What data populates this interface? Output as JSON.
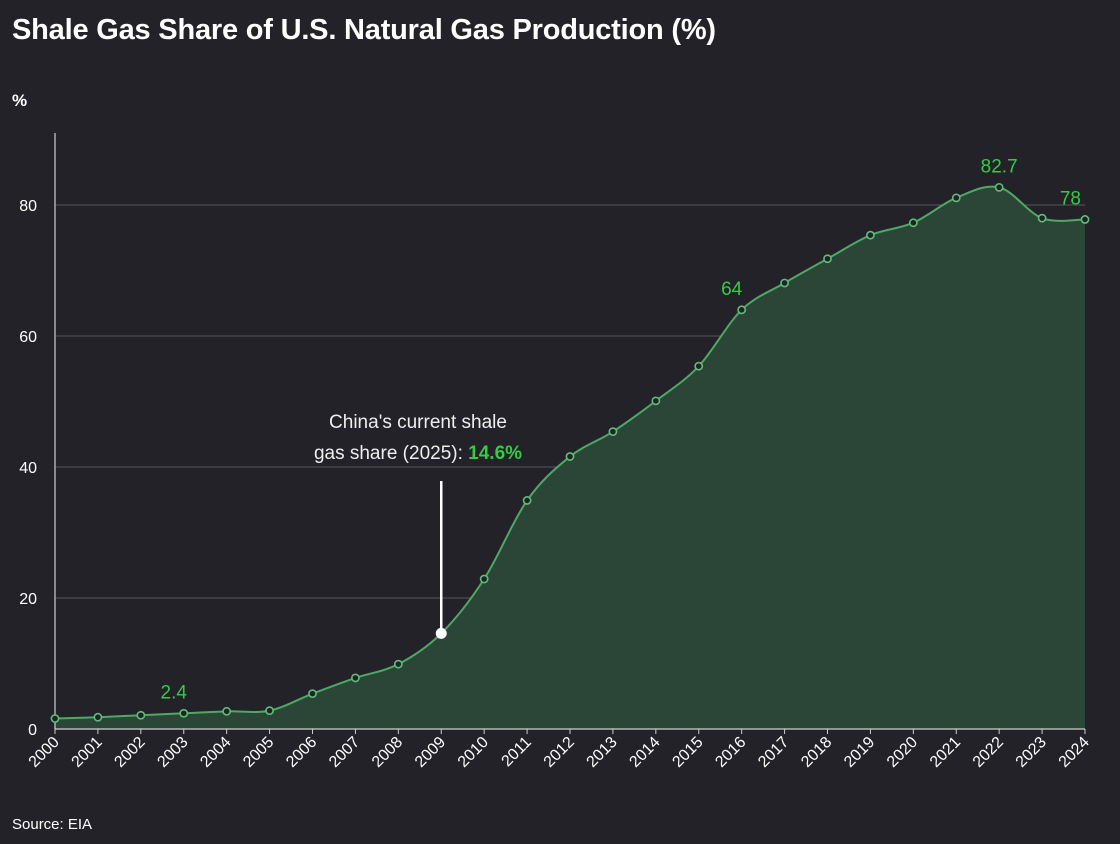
{
  "title": "Shale Gas Share of U.S. Natural Gas Production (%)",
  "unit_label": "%",
  "source": "Source: EIA",
  "colors": {
    "background": "#222228",
    "line": "#4fa865",
    "area": "#2b4636",
    "label": "#33cc44",
    "grid": "#55555c"
  },
  "chart_data": {
    "type": "area",
    "title": "Shale Gas Share of U.S. Natural Gas Production (%)",
    "ylabel": "%",
    "xlabel": "",
    "ylim": [
      0,
      91
    ],
    "yticks": [
      0,
      20,
      40,
      60,
      80
    ],
    "grid": true,
    "x": [
      2000,
      2001,
      2002,
      2003,
      2004,
      2005,
      2006,
      2007,
      2008,
      2009,
      2010,
      2011,
      2012,
      2013,
      2014,
      2015,
      2016,
      2017,
      2018,
      2019,
      2020,
      2021,
      2022,
      2023,
      2024
    ],
    "values": [
      1.6,
      1.8,
      2.1,
      2.4,
      2.7,
      2.8,
      5.4,
      7.8,
      9.9,
      14.6,
      22.9,
      34.9,
      41.6,
      45.4,
      50.1,
      55.4,
      64.0,
      68.1,
      71.8,
      75.4,
      77.3,
      81.1,
      82.7,
      78.0,
      77.8
    ],
    "data_labels": [
      {
        "x": 2003,
        "text": "2.4"
      },
      {
        "x": 2016,
        "text": "64"
      },
      {
        "x": 2022,
        "text": "82.7"
      },
      {
        "x": 2024,
        "text": "78"
      }
    ],
    "annotation": {
      "x": 2009,
      "value": 14.6,
      "line1": "China's current shale",
      "line2_prefix": "gas share (2025): ",
      "line2_value": "14.6%"
    }
  }
}
